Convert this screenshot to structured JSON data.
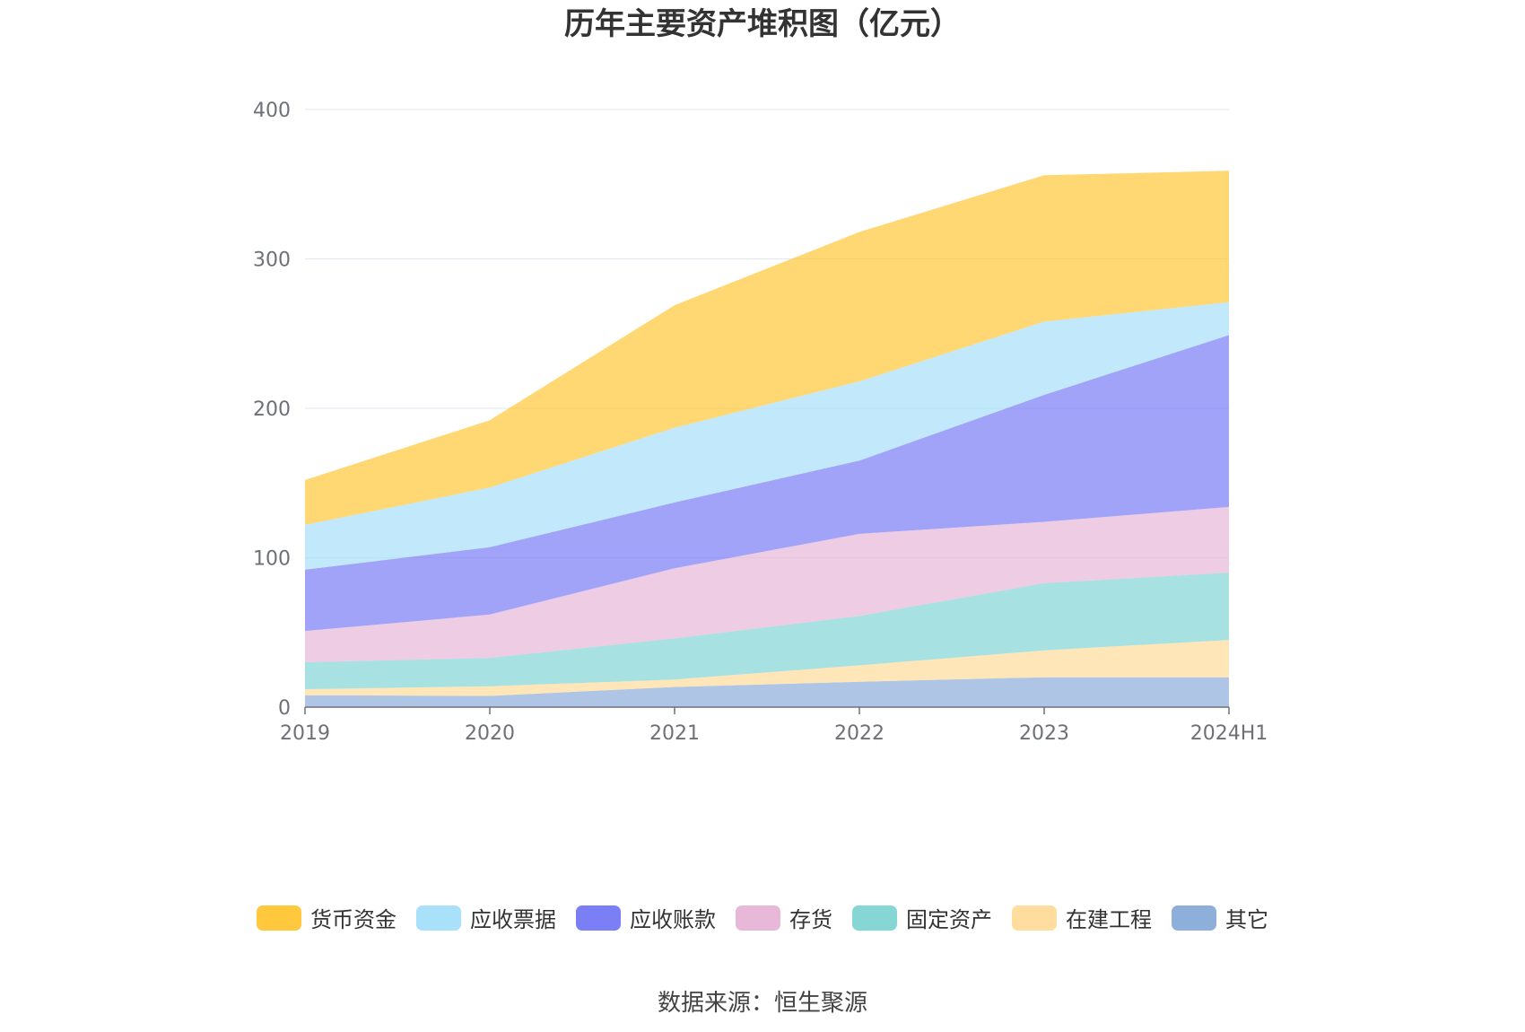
{
  "chart_data": {
    "type": "area",
    "stacked": true,
    "title": "历年主要资产堆积图（亿元）",
    "x": [
      "2019",
      "2020",
      "2021",
      "2022",
      "2023",
      "2024H1"
    ],
    "ylim": [
      0,
      400
    ],
    "yticks": [
      "0",
      "100",
      "200",
      "300",
      "400"
    ],
    "grid": true,
    "legend_position": "bottom",
    "series": [
      {
        "name": "其它",
        "color": "#8fafdb",
        "values": [
          8,
          7.5,
          13.5,
          17,
          20,
          20
        ]
      },
      {
        "name": "在建工程",
        "color": "#fedd9e",
        "values": [
          4,
          6.5,
          5,
          11,
          18,
          25
        ]
      },
      {
        "name": "固定资产",
        "color": "#86d6d6",
        "values": [
          18,
          19,
          27.5,
          33,
          45,
          45
        ]
      },
      {
        "name": "存货",
        "color": "#e7b8d8",
        "values": [
          21,
          29,
          47,
          55,
          41,
          44
        ]
      },
      {
        "name": "应收账款",
        "color": "#7b7ff5",
        "values": [
          41,
          45,
          44,
          49,
          85,
          115
        ]
      },
      {
        "name": "应收票据",
        "color": "#a9e0fa",
        "values": [
          30,
          40,
          50,
          53,
          49,
          22
        ]
      },
      {
        "name": "货币资金",
        "color": "#ffc83d",
        "values": [
          30,
          45,
          82,
          100,
          98,
          88
        ]
      }
    ]
  },
  "legend": {
    "items": [
      {
        "label": "货币资金",
        "color": "#ffc83d"
      },
      {
        "label": "应收票据",
        "color": "#a9e0fa"
      },
      {
        "label": "应收账款",
        "color": "#7b7ff5"
      },
      {
        "label": "存货",
        "color": "#e7b8d8"
      },
      {
        "label": "固定资产",
        "color": "#86d6d6"
      },
      {
        "label": "在建工程",
        "color": "#fedd9e"
      },
      {
        "label": "其它",
        "color": "#8fafdb"
      }
    ]
  },
  "source_note": "数据来源：恒生聚源"
}
